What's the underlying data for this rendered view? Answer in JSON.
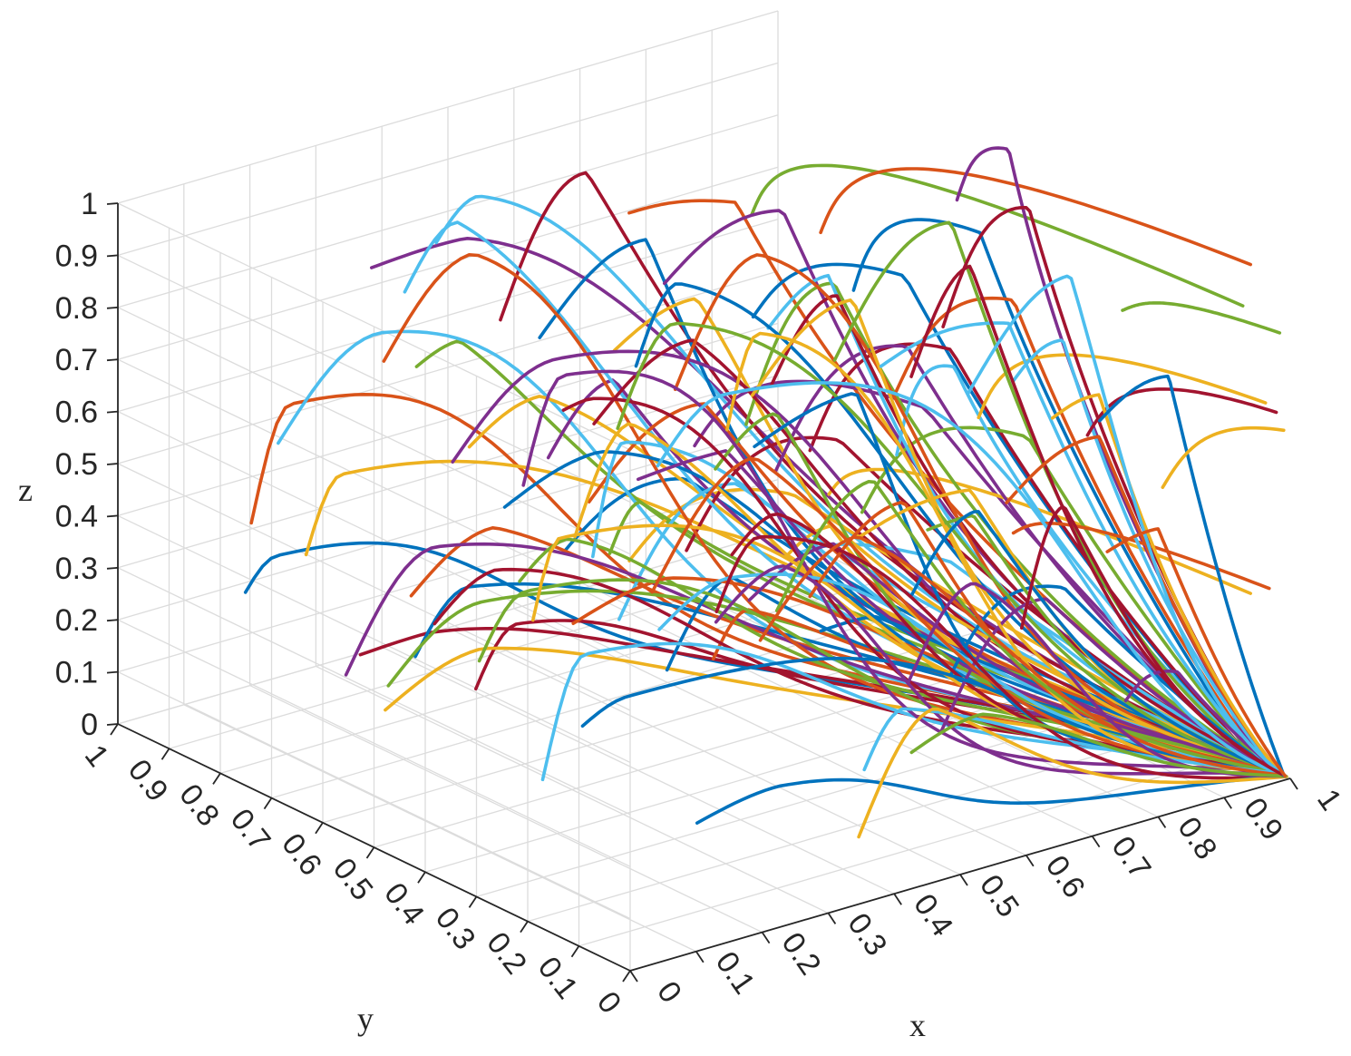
{
  "chart_data": {
    "type": "line",
    "projection": "3d",
    "xlabel": "x",
    "ylabel": "y",
    "zlabel": "z",
    "xlim": [
      0,
      1
    ],
    "ylim": [
      0,
      1
    ],
    "zlim": [
      0,
      1
    ],
    "xticks": [
      "0",
      "0.1",
      "0.2",
      "0.3",
      "0.4",
      "0.5",
      "0.6",
      "0.7",
      "0.8",
      "0.9",
      "1"
    ],
    "yticks": [
      "0",
      "0.1",
      "0.2",
      "0.3",
      "0.4",
      "0.5",
      "0.6",
      "0.7",
      "0.8",
      "0.9",
      "1"
    ],
    "zticks": [
      "0",
      "0.1",
      "0.2",
      "0.3",
      "0.4",
      "0.5",
      "0.6",
      "0.7",
      "0.8",
      "0.9",
      "1"
    ],
    "grid": true,
    "legend": "none",
    "color_cycle": [
      "#0072BD",
      "#D95319",
      "#EDB120",
      "#7E2F8E",
      "#77AC30",
      "#4DBEEE",
      "#A2142F"
    ],
    "series_count": 110,
    "series_model": "Each curve rises from z0 at its starting x to a peak, then falls smoothly toward z = 0 at x = 1; starting points lie on a grid of x from 0.1 to 0.9 and y from 0.1 to 0.9.",
    "sample_series": [
      {
        "y": 0.9,
        "x": [
          0.1,
          0.2,
          0.4,
          0.6,
          0.8,
          1.0
        ],
        "z": [
          0.08,
          0.42,
          0.35,
          0.2,
          0.07,
          0.0
        ]
      },
      {
        "y": 0.9,
        "x": [
          0.1,
          0.15,
          0.3,
          0.5,
          0.7,
          0.9,
          1.0
        ],
        "z": [
          0.88,
          0.91,
          0.85,
          0.7,
          0.5,
          0.12,
          0.0
        ]
      },
      {
        "y": 0.1,
        "x": [
          0.6,
          0.7,
          0.8,
          0.9,
          0.95,
          1.0
        ],
        "z": [
          0.1,
          0.12,
          0.1,
          0.05,
          0.02,
          0.0
        ]
      },
      {
        "y": 0.1,
        "x": [
          0.9,
          0.95,
          0.98,
          1.0
        ],
        "z": [
          0.79,
          0.55,
          0.2,
          0.0
        ]
      }
    ]
  }
}
